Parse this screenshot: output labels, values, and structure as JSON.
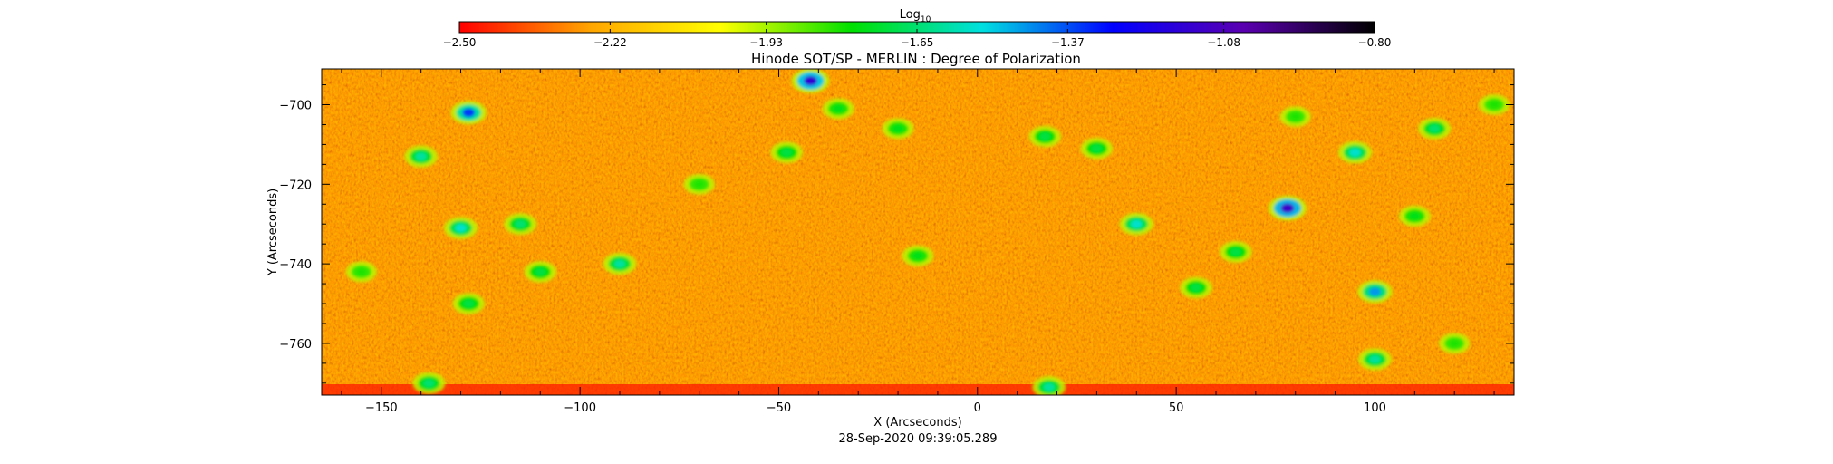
{
  "chart_data": {
    "type": "heatmap",
    "title": "Hinode SOT/SP - MERLIN : Degree of Polarization",
    "xlabel": "X (Arcseconds)",
    "ylabel": "Y (Arcseconds)",
    "timestamp": "28-Sep-2020 09:39:05.289",
    "xlim": [
      -165,
      135
    ],
    "ylim": [
      -773,
      -691
    ],
    "x_ticks": [
      -150,
      -100,
      -50,
      0,
      50,
      100
    ],
    "x_tick_labels": [
      "−150",
      "−100",
      "−50",
      "0",
      "50",
      "100"
    ],
    "y_ticks": [
      -700,
      -720,
      -740,
      -760
    ],
    "y_tick_labels": [
      "−700",
      "−720",
      "−740",
      "−760"
    ],
    "colorbar": {
      "label_base": "Log",
      "label_subscript": "10",
      "range": [
        -2.5,
        -0.8
      ],
      "ticks": [
        -2.5,
        -2.22,
        -1.93,
        -1.65,
        -1.37,
        -1.08,
        -0.8
      ],
      "tick_labels": [
        "−2.50",
        "−2.22",
        "−1.93",
        "−1.65",
        "−1.37",
        "−1.08",
        "−0.80"
      ],
      "colormap": [
        "#ff0000",
        "#ffa500",
        "#ffff00",
        "#00e000",
        "#00e0e0",
        "#0000ff",
        "#5a00b0",
        "#000000"
      ]
    },
    "features": [
      {
        "x": -42,
        "y": -694,
        "value": -1.15
      },
      {
        "x": 78,
        "y": -726,
        "value": -1.12
      },
      {
        "x": -128,
        "y": -702,
        "value": -1.35
      },
      {
        "x": 100,
        "y": -747,
        "value": -1.45
      },
      {
        "x": 40,
        "y": -730,
        "value": -1.55
      },
      {
        "x": 18,
        "y": -771,
        "value": -1.6
      },
      {
        "x": -140,
        "y": -713,
        "value": -1.6
      },
      {
        "x": 95,
        "y": -712,
        "value": -1.55
      },
      {
        "x": -90,
        "y": -740,
        "value": -1.6
      },
      {
        "x": 17,
        "y": -708,
        "value": -1.7
      },
      {
        "x": 100,
        "y": -764,
        "value": -1.6
      },
      {
        "x": -130,
        "y": -731,
        "value": -1.55
      },
      {
        "x": -115,
        "y": -730,
        "value": -1.65
      },
      {
        "x": -110,
        "y": -742,
        "value": -1.7
      },
      {
        "x": -48,
        "y": -712,
        "value": -1.7
      },
      {
        "x": -20,
        "y": -706,
        "value": -1.75
      },
      {
        "x": -128,
        "y": -750,
        "value": -1.7
      },
      {
        "x": -138,
        "y": -770,
        "value": -1.65
      },
      {
        "x": 55,
        "y": -746,
        "value": -1.7
      },
      {
        "x": 115,
        "y": -706,
        "value": -1.65
      },
      {
        "x": -35,
        "y": -701,
        "value": -1.75
      },
      {
        "x": 30,
        "y": -711,
        "value": -1.7
      },
      {
        "x": 110,
        "y": -728,
        "value": -1.75
      },
      {
        "x": 130,
        "y": -700,
        "value": -1.8
      },
      {
        "x": 65,
        "y": -737,
        "value": -1.7
      },
      {
        "x": -155,
        "y": -742,
        "value": -1.8
      },
      {
        "x": 80,
        "y": -703,
        "value": -1.8
      },
      {
        "x": -70,
        "y": -720,
        "value": -1.8
      },
      {
        "x": 120,
        "y": -760,
        "value": -1.8
      },
      {
        "x": -15,
        "y": -738,
        "value": -1.75
      }
    ]
  }
}
